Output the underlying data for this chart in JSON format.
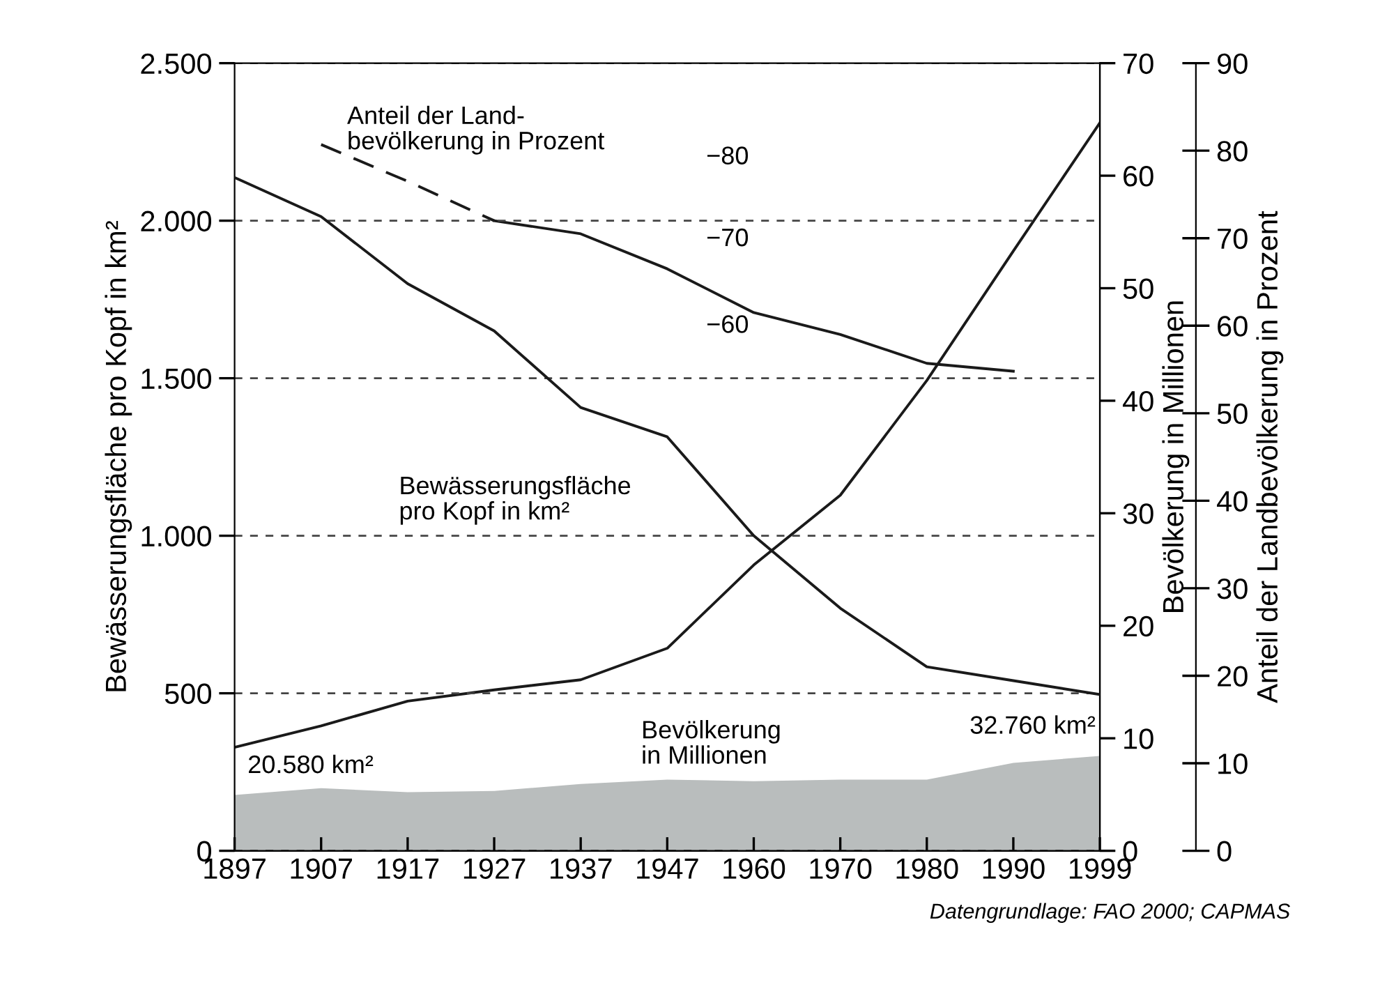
{
  "chart_data": {
    "type": "line",
    "categories": [
      "1897",
      "1907",
      "1917",
      "1927",
      "1937",
      "1947",
      "1960",
      "1970",
      "1980",
      "1990",
      "1999"
    ],
    "ylabel": "Bewässerungsfläche pro Kopf in km²",
    "y2label": "Bevölkerung in Millionen",
    "y3label": "Anteil der Landbevölkerung in Prozent",
    "ylim": [
      0,
      2500
    ],
    "yticks": [
      {
        "value": 0,
        "label": "0"
      },
      {
        "value": 500,
        "label": "500"
      },
      {
        "value": 1000,
        "label": "1.000"
      },
      {
        "value": 1500,
        "label": "1.500"
      },
      {
        "value": 2000,
        "label": "2.000"
      },
      {
        "value": 2500,
        "label": "2.500"
      }
    ],
    "y2lim": [
      0,
      70
    ],
    "y2ticks": [
      0,
      10,
      20,
      30,
      40,
      50,
      60,
      70
    ],
    "y3lim": [
      0,
      90
    ],
    "y3ticks": [
      0,
      10,
      20,
      30,
      40,
      50,
      60,
      70,
      80,
      90
    ],
    "grid": "y",
    "series": [
      {
        "type": "area",
        "color": "#b9bdbd",
        "values": [
          177,
          199,
          186,
          190,
          212,
          226,
          221,
          226,
          226,
          279,
          301
        ]
      },
      {
        "color": "#1a1a1a",
        "values": [
          2137,
          2013,
          1800,
          1650,
          1407,
          1314,
          1000,
          770,
          584,
          540,
          496
        ]
      },
      {
        "color": "#1a1a1a",
        "axis": "y2",
        "values": [
          9.2,
          11.1,
          13.3,
          14.3,
          15.2,
          18.0,
          25.4,
          31.6,
          41.8,
          53.3,
          64.7
        ]
      },
      {
        "color": "#1a1a1a",
        "axis": "y3",
        "line_style": "dashed",
        "values": [
          null,
          80.7,
          76.5,
          72,
          null,
          null,
          null,
          null,
          null,
          null,
          null
        ]
      },
      {
        "color": "#1a1a1a",
        "axis": "y3",
        "values": [
          null,
          null,
          null,
          72,
          70.5,
          66.5,
          61.5,
          59,
          55.7,
          54.8,
          null
        ]
      }
    ],
    "annotations": [
      "Anteil der Land-\nbevölkerung in Prozent",
      "Bewässerungsfläche\npro Kopf in km²",
      "Bevölkerung\nin Millionen",
      "−80",
      "−70",
      "−60",
      "20.580 km²",
      "32.760 km²",
      "Datengrundlage: FAO 2000; CAPMAS"
    ]
  }
}
